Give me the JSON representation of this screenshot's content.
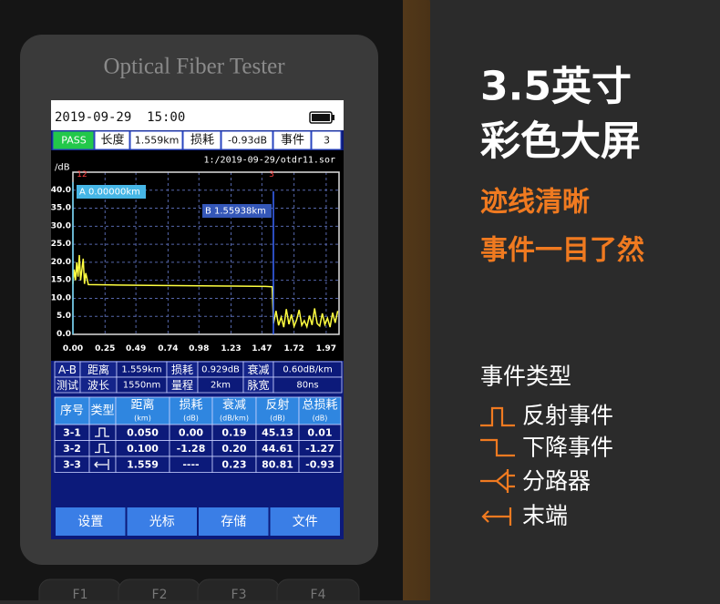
{
  "device": {
    "label": "Optical Fiber Tester",
    "keys": [
      "F1",
      "F2",
      "F3",
      "F4"
    ]
  },
  "screen": {
    "datetime": "2019-09-29  15:00",
    "status": [
      "PASS",
      "长度",
      "1.559km",
      "损耗",
      "-0.93dB",
      "事件",
      "3"
    ],
    "measure": {
      "rows": [
        [
          "A-B",
          "距离",
          "1.559km",
          "损耗",
          "0.929dB",
          "衰减",
          "0.60dB/km"
        ],
        [
          "测试",
          "波长",
          "1550nm",
          "量程",
          "2km",
          "脉宽",
          "80ns"
        ]
      ]
    },
    "events": {
      "header": [
        [
          "序号"
        ],
        [
          "类型"
        ],
        [
          "距离",
          "(km)"
        ],
        [
          "损耗",
          "(dB)"
        ],
        [
          "衰减",
          "(dB/km)"
        ],
        [
          "反射",
          "(dB)"
        ],
        [
          "总损耗",
          "(dB)"
        ]
      ],
      "rows": [
        [
          "3-1",
          "0.050",
          "0.00",
          "0.19",
          "45.13",
          "0.01"
        ],
        [
          "3-2",
          "0.100",
          "-1.28",
          "0.20",
          "44.61",
          "-1.27"
        ],
        [
          "3-3",
          "1.559",
          "----",
          "0.23",
          "80.81",
          "-0.93"
        ]
      ]
    },
    "buttons": [
      "设置",
      "光标",
      "存储",
      "文件"
    ]
  },
  "chart_data": {
    "type": "line",
    "y_unit": "/dB",
    "file": "1:/2019-09-29/otdr11.sor",
    "x": [
      0,
      0.01,
      0.02,
      0.03,
      0.04,
      0.05,
      0.06,
      0.07,
      0.08,
      0.09,
      0.1,
      0.12,
      0.3,
      0.6,
      0.9,
      1.2,
      1.5,
      1.55,
      1.56,
      1.58,
      1.6,
      1.62,
      1.64,
      1.66,
      1.68,
      1.7,
      1.72,
      1.74,
      1.76,
      1.78,
      1.8,
      1.82,
      1.84,
      1.86,
      1.88,
      1.9,
      1.92,
      1.94,
      1.96,
      1.98,
      2.0,
      2.02,
      2.04,
      2.06
    ],
    "series": [
      {
        "color": "#ffff40",
        "values": [
          14,
          18,
          15,
          20,
          16,
          22,
          15,
          18,
          21,
          14,
          17,
          13.8,
          13.7,
          13.6,
          13.5,
          13.4,
          13.3,
          13.2,
          3.0,
          6.5,
          2.5,
          4.8,
          2.0,
          7.0,
          2.8,
          5.5,
          2.2,
          4.0,
          6.8,
          2.5,
          3.8,
          2.1,
          5.2,
          2.6,
          7.2,
          3.0,
          2.3,
          5.8,
          2.7,
          4.5,
          2.0,
          6.0,
          3.2,
          6.5
        ]
      }
    ],
    "xlim": [
      0,
      2.07
    ],
    "ylim": [
      0,
      45
    ],
    "xticks": [
      {
        "value": 0,
        "label": "0.00"
      },
      0.25,
      0.49,
      0.74,
      0.98,
      1.23,
      1.47,
      1.72,
      1.97
    ],
    "yticks": [
      {
        "value": 0,
        "label": "0.0"
      },
      {
        "value": 5,
        "label": "5.0"
      },
      {
        "value": 10,
        "label": "10.0"
      },
      {
        "value": 15,
        "label": "15.0"
      },
      {
        "value": 20,
        "label": "20.0"
      },
      {
        "value": 25,
        "label": "25.0"
      },
      {
        "value": 30,
        "label": "30.0"
      },
      {
        "value": 35,
        "label": "35.0"
      },
      {
        "value": 40,
        "label": "40.0"
      }
    ],
    "grid": true,
    "cursors": [
      {
        "value": 0,
        "label": "A 0.00000km"
      },
      {
        "value": 1.55938,
        "label": "B 1.55938km"
      }
    ],
    "event_markers": [
      "12",
      "3"
    ]
  },
  "promo": {
    "headline": [
      "3.5英寸",
      "彩色大屏"
    ],
    "features": [
      "迹线清晰",
      "事件一目了然"
    ],
    "legend_title": "事件类型",
    "legend": [
      "反射事件",
      "下降事件",
      "分路器",
      "末端"
    ]
  }
}
